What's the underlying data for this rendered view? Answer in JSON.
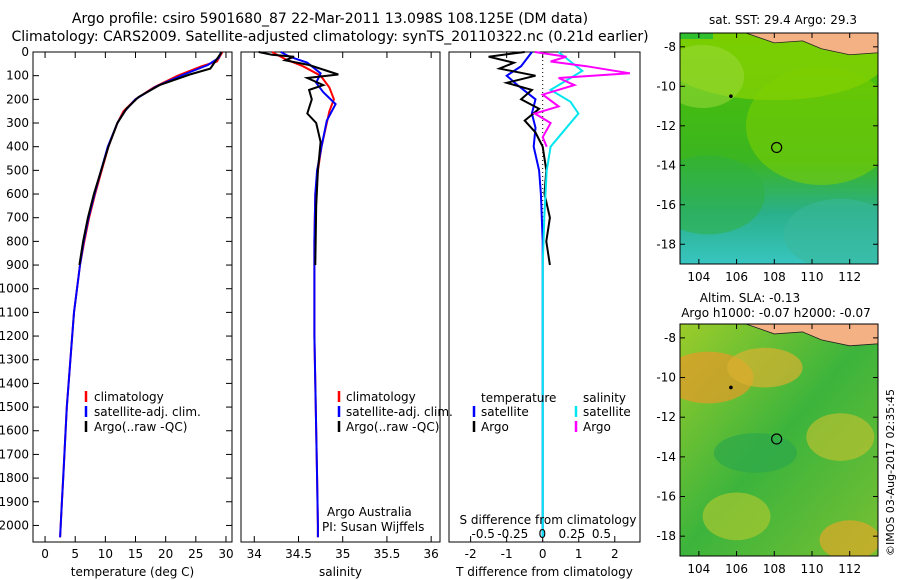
{
  "header": {
    "line1": "Argo profile: csiro 5901680_87 22-Mar-2011 13.098S 108.125E (DM data)",
    "line2": "Climatology: CARS2009. Satellite-adjusted climatology: synTS_20110322.nc (0.21d earlier)"
  },
  "colors": {
    "climatology": "#ff0000",
    "satellite": "#0000ff",
    "argo": "#000000",
    "sat_salinity": "#00e5ee",
    "argo_salinity": "#ff00ff"
  },
  "chart_data": [
    {
      "type": "line",
      "name": "temperature",
      "xlabel": "temperature (deg C)",
      "ylabel": "",
      "xlim": [
        -2,
        31
      ],
      "ylim": [
        2070,
        0
      ],
      "xticks": [
        0,
        5,
        10,
        15,
        20,
        25,
        30
      ],
      "yticks": [
        0,
        100,
        200,
        300,
        400,
        500,
        600,
        700,
        800,
        900,
        1000,
        1100,
        1200,
        1300,
        1400,
        1500,
        1600,
        1700,
        1800,
        1900,
        2000
      ],
      "legend": [
        "climatology",
        "satellite-adj. clim.",
        "Argo(..raw -QC)"
      ],
      "series": [
        {
          "name": "climatology",
          "color": "#ff0000",
          "points": [
            [
              29.4,
              0
            ],
            [
              28.5,
              40
            ],
            [
              26,
              60
            ],
            [
              22,
              100
            ],
            [
              18,
              150
            ],
            [
              15,
              200
            ],
            [
              13,
              250
            ],
            [
              12,
              300
            ],
            [
              10.5,
              400
            ],
            [
              9.4,
              500
            ],
            [
              8.3,
              600
            ],
            [
              7.3,
              700
            ],
            [
              6.5,
              800
            ],
            [
              5.8,
              900
            ],
            [
              5.3,
              1000
            ],
            [
              4.8,
              1100
            ],
            [
              4.5,
              1200
            ],
            [
              4.2,
              1300
            ],
            [
              3.9,
              1400
            ],
            [
              3.6,
              1500
            ],
            [
              3.4,
              1600
            ],
            [
              3.2,
              1700
            ],
            [
              3.0,
              1800
            ],
            [
              2.8,
              1900
            ],
            [
              2.6,
              2000
            ],
            [
              2.5,
              2050
            ]
          ]
        },
        {
          "name": "satellite-adj. clim.",
          "color": "#0000ff",
          "points": [
            [
              29.2,
              0
            ],
            [
              28.8,
              25
            ],
            [
              27,
              55
            ],
            [
              23,
              95
            ],
            [
              18.5,
              145
            ],
            [
              15,
              200
            ],
            [
              13.2,
              250
            ],
            [
              12,
              300
            ],
            [
              10.4,
              400
            ],
            [
              9.3,
              500
            ],
            [
              8.2,
              600
            ],
            [
              7.2,
              700
            ],
            [
              6.4,
              800
            ],
            [
              5.8,
              900
            ],
            [
              5.3,
              1000
            ],
            [
              4.8,
              1100
            ],
            [
              4.5,
              1200
            ],
            [
              4.2,
              1300
            ],
            [
              3.9,
              1400
            ],
            [
              3.6,
              1500
            ],
            [
              3.4,
              1600
            ],
            [
              3.2,
              1700
            ],
            [
              3.0,
              1800
            ],
            [
              2.8,
              1900
            ],
            [
              2.6,
              2000
            ],
            [
              2.5,
              2050
            ]
          ]
        },
        {
          "name": "Argo(..raw -QC)",
          "color": "#000000",
          "points": [
            [
              29.3,
              0
            ],
            [
              28.5,
              30
            ],
            [
              27.4,
              70
            ],
            [
              24,
              95
            ],
            [
              19,
              140
            ],
            [
              15.5,
              190
            ],
            [
              13.5,
              240
            ],
            [
              12,
              300
            ],
            [
              10.5,
              400
            ],
            [
              9.3,
              500
            ],
            [
              8.1,
              600
            ],
            [
              7.1,
              700
            ],
            [
              6.3,
              800
            ],
            [
              5.7,
              900
            ]
          ]
        }
      ]
    },
    {
      "type": "line",
      "name": "salinity",
      "xlabel": "salinity",
      "ylabel": "",
      "xlim": [
        33.85,
        36.1
      ],
      "ylim": [
        2070,
        0
      ],
      "xticks": [
        34,
        34.5,
        35,
        35.5,
        36
      ],
      "legend": [
        "climatology",
        "satellite-adj. clim.",
        "Argo(..raw -QC)"
      ],
      "annotations": [
        "Argo Australia",
        "PI: Susan Wijffels"
      ],
      "series": [
        {
          "name": "climatology",
          "color": "#ff0000",
          "points": [
            [
              34.2,
              0
            ],
            [
              34.35,
              30
            ],
            [
              34.55,
              60
            ],
            [
              34.75,
              100
            ],
            [
              34.85,
              150
            ],
            [
              34.9,
              200
            ],
            [
              34.85,
              250
            ],
            [
              34.82,
              300
            ],
            [
              34.76,
              400
            ],
            [
              34.72,
              500
            ],
            [
              34.69,
              600
            ],
            [
              34.68,
              800
            ],
            [
              34.68,
              1000
            ],
            [
              34.68,
              1200
            ],
            [
              34.69,
              1400
            ],
            [
              34.7,
              1600
            ],
            [
              34.71,
              1800
            ],
            [
              34.72,
              2000
            ],
            [
              34.72,
              2050
            ]
          ]
        },
        {
          "name": "satellite-adj. clim.",
          "color": "#0000ff",
          "points": [
            [
              34.3,
              0
            ],
            [
              34.4,
              20
            ],
            [
              34.6,
              45
            ],
            [
              34.75,
              90
            ],
            [
              34.7,
              130
            ],
            [
              34.78,
              170
            ],
            [
              34.92,
              220
            ],
            [
              34.82,
              290
            ],
            [
              34.76,
              400
            ],
            [
              34.71,
              500
            ],
            [
              34.69,
              600
            ],
            [
              34.68,
              800
            ],
            [
              34.68,
              1000
            ],
            [
              34.68,
              1200
            ],
            [
              34.69,
              1400
            ],
            [
              34.7,
              1600
            ],
            [
              34.71,
              1800
            ],
            [
              34.72,
              2000
            ],
            [
              34.72,
              2050
            ]
          ]
        },
        {
          "name": "Argo(..raw -QC)",
          "color": "#000000",
          "points": [
            [
              34.05,
              0
            ],
            [
              34.2,
              12
            ],
            [
              34.45,
              20
            ],
            [
              34.35,
              35
            ],
            [
              34.62,
              55
            ],
            [
              34.95,
              95
            ],
            [
              34.6,
              110
            ],
            [
              34.78,
              140
            ],
            [
              34.62,
              160
            ],
            [
              34.65,
              200
            ],
            [
              34.6,
              260
            ],
            [
              34.7,
              300
            ],
            [
              34.75,
              380
            ],
            [
              34.72,
              500
            ],
            [
              34.7,
              650
            ],
            [
              34.69,
              900
            ]
          ]
        }
      ]
    },
    {
      "type": "line",
      "name": "difference from climatology",
      "xlabel": "T difference from climatology",
      "x2label": "S difference from climatology",
      "xlim": [
        -2.6,
        2.7
      ],
      "ylim": [
        2070,
        0
      ],
      "xticks": [
        -2,
        -1,
        0,
        1,
        2
      ],
      "x2ticks": [
        -0.5,
        -0.25,
        0,
        0.25,
        0.5
      ],
      "legend": {
        "temperature": [
          "satellite",
          "Argo"
        ],
        "salinity": [
          "satellite",
          "Argo"
        ]
      },
      "series": [
        {
          "name": "satellite",
          "group": "temperature",
          "color": "#0000ff",
          "points": [
            [
              -0.3,
              0
            ],
            [
              -0.6,
              60
            ],
            [
              -1.0,
              100
            ],
            [
              -0.7,
              140
            ],
            [
              -0.2,
              200
            ],
            [
              -0.3,
              260
            ],
            [
              -0.2,
              320
            ],
            [
              -0.25,
              400
            ],
            [
              -0.1,
              500
            ],
            [
              -0.05,
              600
            ],
            [
              0,
              800
            ],
            [
              0,
              1000
            ],
            [
              0,
              1200
            ],
            [
              0,
              1400
            ],
            [
              0,
              1600
            ],
            [
              0,
              1800
            ],
            [
              0,
              2000
            ],
            [
              0,
              2050
            ]
          ]
        },
        {
          "name": "Argo",
          "group": "temperature",
          "color": "#000000",
          "points": [
            [
              -0.5,
              0
            ],
            [
              -1.5,
              20
            ],
            [
              -0.8,
              45
            ],
            [
              -1.2,
              70
            ],
            [
              -0.2,
              100
            ],
            [
              -1.0,
              130
            ],
            [
              -0.3,
              160
            ],
            [
              -0.6,
              200
            ],
            [
              -0.1,
              240
            ],
            [
              -0.5,
              290
            ],
            [
              -0.2,
              340
            ],
            [
              0.0,
              400
            ],
            [
              0.1,
              500
            ],
            [
              0.05,
              600
            ],
            [
              0.2,
              700
            ],
            [
              0.1,
              800
            ],
            [
              0.2,
              900
            ]
          ]
        },
        {
          "name": "satellite",
          "group": "salinity",
          "color": "#00e5ee",
          "points": [
            [
              0.2,
              0
            ],
            [
              0.35,
              40
            ],
            [
              0.5,
              80
            ],
            [
              0.3,
              120
            ],
            [
              0.1,
              160
            ],
            [
              0.35,
              210
            ],
            [
              0.45,
              260
            ],
            [
              0.3,
              320
            ],
            [
              0.1,
              400
            ],
            [
              0.05,
              500
            ],
            [
              0.02,
              700
            ],
            [
              0,
              900
            ],
            [
              0,
              1200
            ],
            [
              0,
              1500
            ],
            [
              0,
              1800
            ],
            [
              0,
              2050
            ]
          ]
        },
        {
          "name": "Argo",
          "group": "salinity",
          "color": "#ff00ff",
          "points": [
            [
              -0.1,
              0
            ],
            [
              0.3,
              20
            ],
            [
              0.1,
              40
            ],
            [
              0.55,
              60
            ],
            [
              1.1,
              90
            ],
            [
              0.2,
              110
            ],
            [
              0.4,
              140
            ],
            [
              0.0,
              180
            ],
            [
              0.2,
              230
            ],
            [
              -0.1,
              260
            ],
            [
              0.1,
              300
            ],
            [
              0.0,
              360
            ],
            [
              0.05,
              400
            ]
          ]
        }
      ]
    },
    {
      "type": "heatmap",
      "name": "sst map",
      "title": "sat. SST: 29.4  Argo: 29.3",
      "xlim": [
        103,
        113.5
      ],
      "ylim": [
        -19,
        -7.3
      ],
      "xticks": [
        104,
        106,
        108,
        110,
        112
      ],
      "yticks": [
        -8,
        -10,
        -12,
        -14,
        -16,
        -18
      ],
      "markers": {
        "argo_position": [
          108.125,
          -13.098
        ],
        "prior_track": [
          105.7,
          -10.5
        ]
      }
    },
    {
      "type": "heatmap",
      "name": "sla map",
      "title": "Altim. SLA: -0.13",
      "subtitle": "Argo h1000: -0.07  h2000: -0.07",
      "xlim": [
        103,
        113.5
      ],
      "ylim": [
        -19,
        -7.3
      ],
      "xticks": [
        104,
        106,
        108,
        110,
        112
      ],
      "yticks": [
        -8,
        -10,
        -12,
        -14,
        -16,
        -18
      ],
      "markers": {
        "argo_position": [
          108.125,
          -13.098
        ],
        "prior_track": [
          105.7,
          -10.5
        ]
      }
    }
  ],
  "credit": "©IMOS 03-Aug-2017 02:35:45"
}
